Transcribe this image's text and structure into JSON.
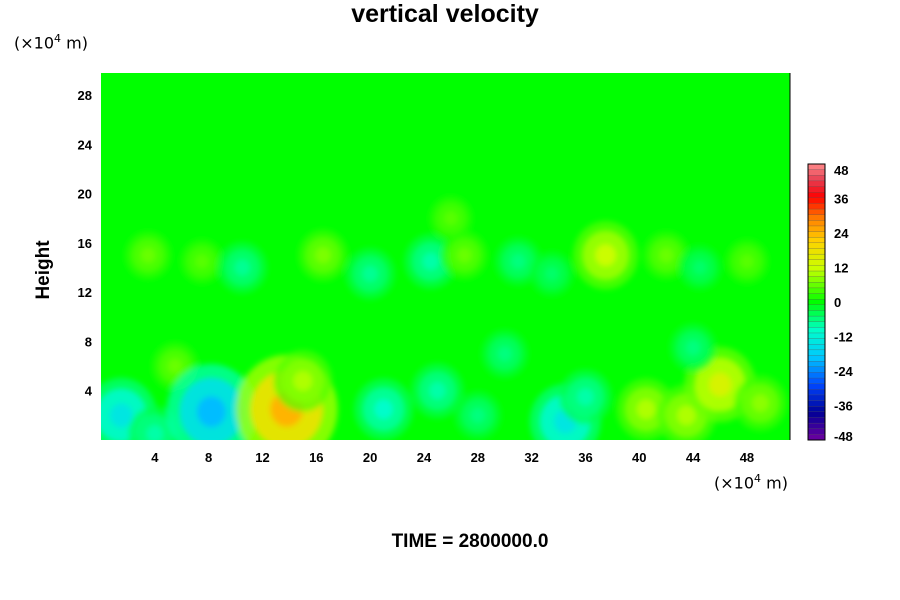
{
  "chart_data": {
    "type": "heatmap",
    "title": "vertical velocity",
    "ylabel": "Height",
    "xlabel": "",
    "x_unit": "(×10⁴ m)",
    "y_unit": "(×10⁴ m)",
    "x_ticks": [
      4,
      8,
      12,
      16,
      20,
      24,
      28,
      32,
      36,
      40,
      44,
      48
    ],
    "y_ticks": [
      4,
      8,
      12,
      16,
      20,
      24,
      28
    ],
    "xlim": [
      0,
      51.2
    ],
    "ylim": [
      0,
      29.8
    ],
    "colorbar": {
      "ticks": [
        48,
        36,
        24,
        12,
        0,
        -12,
        -24,
        -36,
        -48
      ],
      "range": [
        -48,
        48
      ],
      "levels": 49
    },
    "colors": {
      "background_field": "#00ff00",
      "upper_quiet": "#06f906",
      "warm": "#ffff00",
      "cool": "#00ffff"
    },
    "anomalies": [
      {
        "x": 1.5,
        "y": 2.0,
        "value": -14
      },
      {
        "x": 4.0,
        "y": 0.5,
        "value": -8
      },
      {
        "x": 5.5,
        "y": 6.0,
        "value": 6
      },
      {
        "x": 8.2,
        "y": 2.3,
        "value": -20
      },
      {
        "x": 13.8,
        "y": 2.5,
        "value": 24
      },
      {
        "x": 15.0,
        "y": 4.8,
        "value": 10
      },
      {
        "x": 21.0,
        "y": 2.5,
        "value": -10
      },
      {
        "x": 25.0,
        "y": 4.0,
        "value": -8
      },
      {
        "x": 28.0,
        "y": 2.0,
        "value": -6
      },
      {
        "x": 34.5,
        "y": 1.5,
        "value": -14
      },
      {
        "x": 36.0,
        "y": 3.5,
        "value": -8
      },
      {
        "x": 40.5,
        "y": 2.5,
        "value": 10
      },
      {
        "x": 43.5,
        "y": 2.0,
        "value": 10
      },
      {
        "x": 46.0,
        "y": 4.5,
        "value": 14
      },
      {
        "x": 49.0,
        "y": 3.0,
        "value": 8
      },
      {
        "x": 30.0,
        "y": 7.0,
        "value": -6
      },
      {
        "x": 44.0,
        "y": 7.5,
        "value": -6
      },
      {
        "x": 37.5,
        "y": 15.0,
        "value": 12
      },
      {
        "x": 3.5,
        "y": 15.0,
        "value": 6
      },
      {
        "x": 7.5,
        "y": 14.5,
        "value": 5
      },
      {
        "x": 10.5,
        "y": 14.0,
        "value": -7
      },
      {
        "x": 16.5,
        "y": 15.0,
        "value": 7
      },
      {
        "x": 20.0,
        "y": 13.5,
        "value": -7
      },
      {
        "x": 24.5,
        "y": 14.5,
        "value": -8
      },
      {
        "x": 27.0,
        "y": 15.0,
        "value": 6
      },
      {
        "x": 31.0,
        "y": 14.5,
        "value": -6
      },
      {
        "x": 33.5,
        "y": 13.5,
        "value": -5
      },
      {
        "x": 42.0,
        "y": 15.0,
        "value": 6
      },
      {
        "x": 44.5,
        "y": 14.0,
        "value": -5
      },
      {
        "x": 26.0,
        "y": 18.0,
        "value": 5
      },
      {
        "x": 48.0,
        "y": 14.5,
        "value": 5
      }
    ]
  },
  "time_label": "TIME = 2800000.0"
}
